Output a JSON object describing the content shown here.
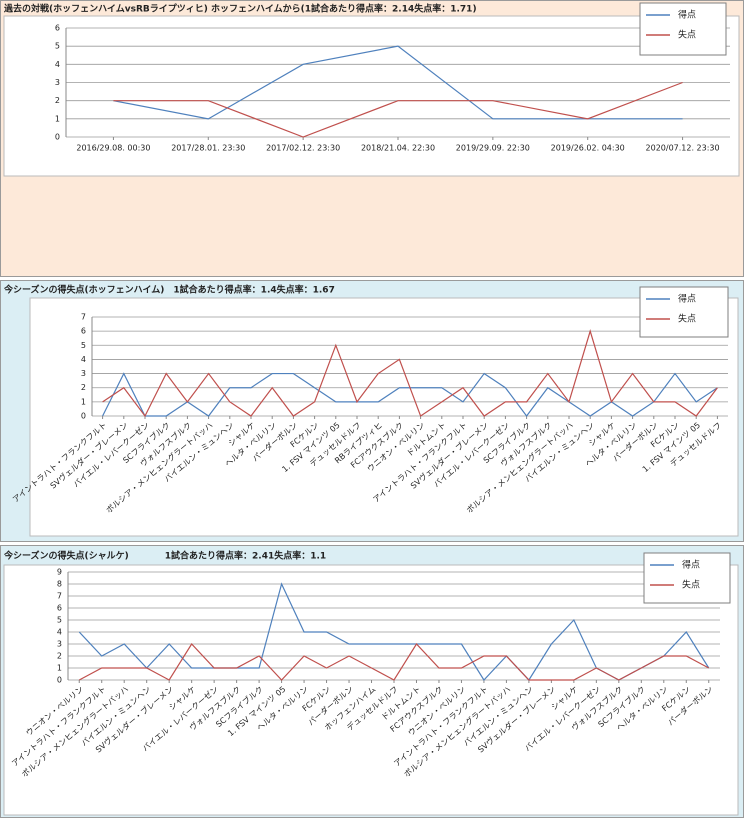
{
  "chart_data": [
    {
      "type": "line",
      "title": "過去の対戦(ホッフェンハイムvsRBライプツィヒ) ホッフェンハイムから(1試合あたり得点率：2.14失点率：1.71)",
      "categories": [
        "2016/29.08. 00:30",
        "2017/28.01. 23:30",
        "2017/02.12. 23:30",
        "2018/21.04. 22:30",
        "2019/29.09. 22:30",
        "2019/26.02. 04:30",
        "2020/07.12. 23:30"
      ],
      "series": [
        {
          "name": "得点",
          "color": "#4f81bd",
          "values": [
            2,
            1,
            4,
            5,
            1,
            1,
            1
          ]
        },
        {
          "name": "失点",
          "color": "#c0504d",
          "values": [
            2,
            2,
            0,
            2,
            2,
            1,
            3
          ]
        }
      ],
      "ylim": [
        0,
        6
      ],
      "yticks": [
        0,
        1,
        2,
        3,
        4,
        5,
        6
      ],
      "grid": true,
      "legend": "top-right"
    },
    {
      "type": "line",
      "title": "今シーズンの得失点(ホッフェンハイム)　1試合あたり得点率：1.4失点率：1.67",
      "categories": [
        "アイントラハト・フランクフルト",
        "SVヴェルダー・ブレーメン",
        "バイエル・レバークーゼン",
        "SCフライブルク",
        "ヴォルフスブルク",
        "ボルシア・メンヒェングラートバッハ",
        "バイエルン・ミュンヘン",
        "シャルケ",
        "ヘルタ・ベルリン",
        "パーダーボルン",
        "FCケルン",
        "1. FSV マインツ 05",
        "デュッセルドルフ",
        "RBライプツィヒ",
        "FCアウクスブルク",
        "ウニオン・ベルリン",
        "ドルトムント",
        "アイントラハト・フランクフルト",
        "SVヴェルダー・ブレーメン",
        "バイエル・レバークーゼン",
        "SCフライブルク",
        "ヴォルフスブルク",
        "ボルシア・メンヒェングラートバッハ",
        "バイエルン・ミュンヘン",
        "シャルケ",
        "ヘルタ・ベルリン",
        "パーダーボルン",
        "FCケルン",
        "1. FSV マインツ 05",
        "デュッセルドルフ"
      ],
      "series": [
        {
          "name": "得点",
          "color": "#4f81bd",
          "values": [
            0,
            3,
            0,
            0,
            1,
            0,
            2,
            2,
            3,
            3,
            2,
            1,
            1,
            1,
            2,
            2,
            2,
            1,
            3,
            2,
            0,
            2,
            1,
            0,
            1,
            0,
            1,
            3,
            1,
            2
          ]
        },
        {
          "name": "失点",
          "color": "#c0504d",
          "values": [
            1,
            2,
            0,
            3,
            1,
            3,
            1,
            0,
            2,
            0,
            1,
            5,
            1,
            3,
            4,
            0,
            1,
            2,
            0,
            1,
            1,
            3,
            1,
            6,
            1,
            3,
            1,
            1,
            0,
            2
          ]
        }
      ],
      "ylim": [
        0,
        7
      ],
      "yticks": [
        0,
        1,
        2,
        3,
        4,
        5,
        6,
        7
      ],
      "grid": true,
      "legend": "top-right"
    },
    {
      "type": "line",
      "title": "今シーズンの得失点(シャルケ)　　　　1試合あたり得点率：2.41失点率：1.1",
      "categories": [
        "ウニオン・ベルリン",
        "アイントラハト・フランクフルト",
        "ボルシア・メンヒェングラートバッハ",
        "バイエルン・ミュンヘン",
        "SVヴェルダー・ブレーメン",
        "シャルケ",
        "バイエル・レバークーゼン",
        "ヴォルフスブルク",
        "SCフライブルク",
        "1. FSV マインツ 05",
        "ヘルタ・ベルリン",
        "FCケルン",
        "パーダーボルン",
        "ホッフェンハイム",
        "デュッセルドルフ",
        "ドルトムント",
        "FCアウクスブルク",
        "ウニオン・ベルリン",
        "アイントラハト・フランクフルト",
        "ボルシア・メンヒェングラートバッハ",
        "バイエルン・ミュンヘン",
        "SVヴェルダー・ブレーメン",
        "シャルケ",
        "バイエル・レバークーゼン",
        "ヴォルフスブルク",
        "SCフライブルク",
        "ヘルタ・ベルリン",
        "FCケルン",
        "パーダーボルン"
      ],
      "series": [
        {
          "name": "得点",
          "color": "#4f81bd",
          "values": [
            4,
            2,
            3,
            1,
            3,
            1,
            1,
            1,
            1,
            8,
            4,
            4,
            3,
            3,
            3,
            3,
            3,
            3,
            0,
            2,
            0,
            3,
            5,
            1,
            0,
            1,
            2,
            4,
            1
          ]
        },
        {
          "name": "失点",
          "color": "#c0504d",
          "values": [
            0,
            1,
            1,
            1,
            0,
            3,
            1,
            1,
            2,
            0,
            2,
            1,
            2,
            1,
            0,
            3,
            1,
            1,
            2,
            2,
            0,
            0,
            0,
            1,
            0,
            1,
            2,
            2,
            1
          ]
        }
      ],
      "ylim": [
        0,
        9
      ],
      "yticks": [
        0,
        1,
        2,
        3,
        4,
        5,
        6,
        7,
        8,
        9
      ],
      "grid": true,
      "legend": "top-right"
    }
  ]
}
